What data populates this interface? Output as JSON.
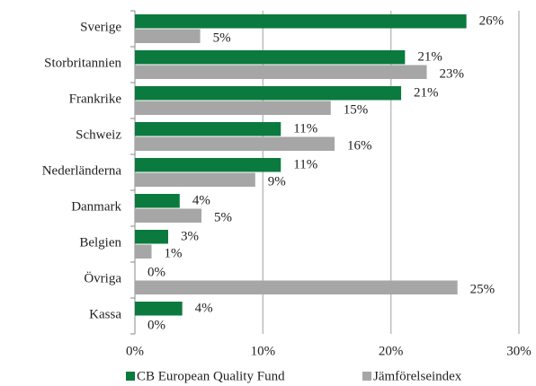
{
  "chart_data": {
    "type": "bar",
    "orientation": "horizontal",
    "categories": [
      "Sverige",
      "Storbritannien",
      "Frankrike",
      "Schweiz",
      "Nederländerna",
      "Danmark",
      "Belgien",
      "Övriga",
      "Kassa"
    ],
    "series": [
      {
        "name": "CB European Quality Fund",
        "color": "#0b7a3e",
        "values": [
          25.9,
          21.1,
          20.8,
          11.4,
          11.4,
          3.5,
          2.6,
          0,
          3.7
        ],
        "value_labels": [
          "26%",
          "21%",
          "21%",
          "11%",
          "11%",
          "4%",
          "3%",
          "0%",
          "4%"
        ]
      },
      {
        "name": "Jämförelseindex",
        "color": "#a6a6a6",
        "values": [
          5.1,
          22.8,
          15.3,
          15.6,
          9.4,
          5.2,
          1.3,
          25.2,
          0
        ],
        "value_labels": [
          "5%",
          "23%",
          "15%",
          "16%",
          "9%",
          "5%",
          "1%",
          "25%",
          "0%"
        ]
      }
    ],
    "xlim": [
      0,
      30
    ],
    "xticks": [
      {
        "value": 0,
        "label": "0%"
      },
      {
        "value": 10,
        "label": "10%"
      },
      {
        "value": 20,
        "label": "20%"
      },
      {
        "value": 30,
        "label": "30%"
      }
    ],
    "grid": true,
    "legend": "bottom"
  }
}
